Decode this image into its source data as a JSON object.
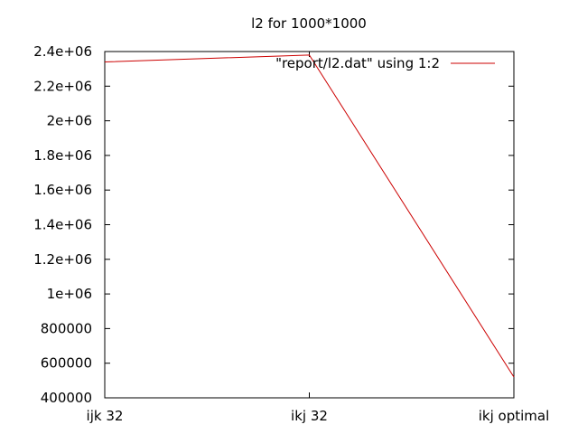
{
  "chart_data": {
    "type": "line",
    "title": "l2 for 1000*1000",
    "xlabel": "",
    "ylabel": "",
    "categories": [
      "ijk 32",
      "ikj 32",
      "ikj optimal"
    ],
    "series": [
      {
        "name": "\"report/l2.dat\" using 1:2",
        "values": [
          2340000,
          2380000,
          520000
        ],
        "color": "#cc0000"
      }
    ],
    "ylim": [
      400000,
      2400000
    ],
    "yticks": [
      400000,
      600000,
      800000,
      1000000,
      1200000,
      1400000,
      1600000,
      1800000,
      2000000,
      2200000,
      2400000
    ],
    "ytick_labels": [
      "400000",
      "600000",
      "800000",
      "1e+06",
      "1.2e+06",
      "1.4e+06",
      "1.6e+06",
      "1.8e+06",
      "2e+06",
      "2.2e+06",
      "2.4e+06"
    ],
    "grid": false,
    "legend_position": "top-right"
  }
}
